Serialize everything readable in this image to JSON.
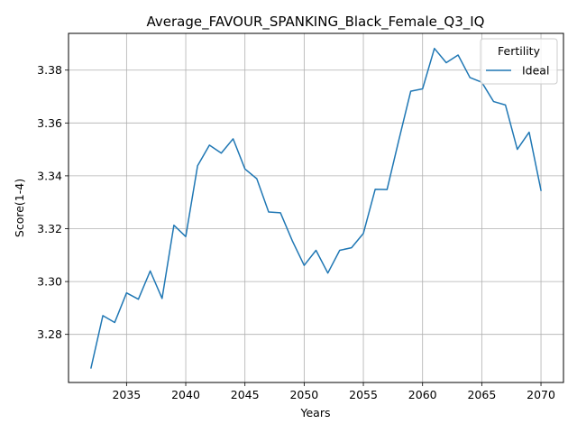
{
  "chart_data": {
    "type": "line",
    "title": "Average_FAVOUR_SPANKING_Black_Female_Q3_IQ",
    "xlabel": "Years",
    "ylabel": "Score(1-4)",
    "xlim": [
      2030.1,
      2071.9
    ],
    "ylim": [
      3.2618,
      3.3939
    ],
    "xticks": [
      2035,
      2040,
      2045,
      2050,
      2055,
      2060,
      2065,
      2070
    ],
    "yticks": [
      3.28,
      3.3,
      3.32,
      3.34,
      3.36,
      3.38
    ],
    "xtick_labels": [
      "2035",
      "2040",
      "2045",
      "2050",
      "2055",
      "2060",
      "2065",
      "2070"
    ],
    "ytick_labels": [
      "3.28",
      "3.30",
      "3.32",
      "3.34",
      "3.36",
      "3.38"
    ],
    "grid": true,
    "legend": {
      "title": "Fertility",
      "placement": "top-right"
    },
    "series": [
      {
        "name": "Ideal",
        "color": "#1f77b4",
        "x": [
          2032,
          2033,
          2034,
          2035,
          2036,
          2037,
          2038,
          2039,
          2040,
          2041,
          2042,
          2043,
          2044,
          2045,
          2046,
          2047,
          2048,
          2049,
          2050,
          2051,
          2052,
          2053,
          2054,
          2055,
          2056,
          2057,
          2058,
          2059,
          2060,
          2061,
          2062,
          2063,
          2064,
          2065,
          2066,
          2067,
          2068,
          2069,
          2070
        ],
        "y": [
          3.2673,
          3.2871,
          3.2845,
          3.2957,
          3.2933,
          3.304,
          3.2936,
          3.3213,
          3.317,
          3.3438,
          3.3516,
          3.3486,
          3.354,
          3.3426,
          3.3389,
          3.3263,
          3.326,
          3.3154,
          3.3061,
          3.3118,
          3.3032,
          3.3118,
          3.3128,
          3.3182,
          3.3349,
          3.3348,
          3.3536,
          3.372,
          3.3729,
          3.3882,
          3.3828,
          3.3857,
          3.3772,
          3.3754,
          3.3681,
          3.3668,
          3.35,
          3.3565,
          3.3345
        ]
      }
    ]
  }
}
